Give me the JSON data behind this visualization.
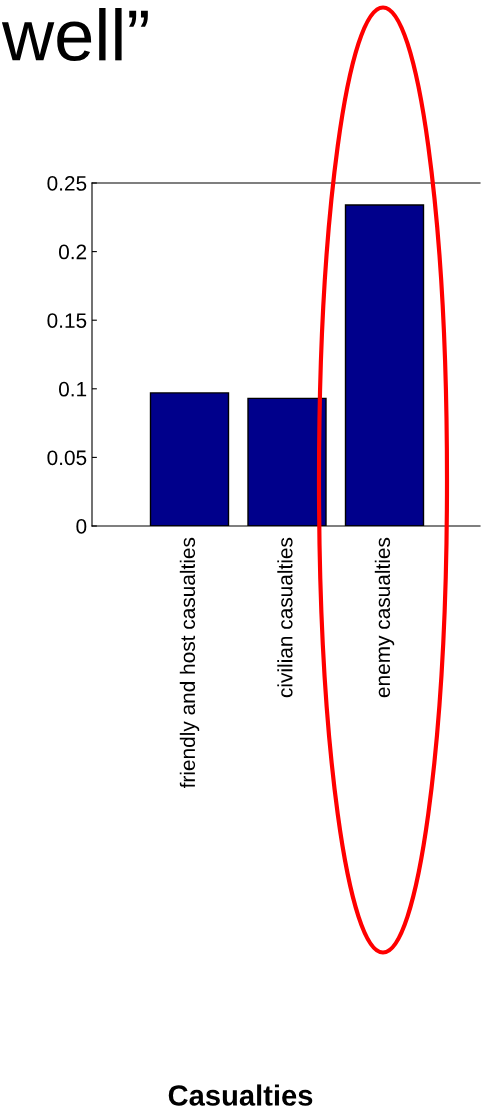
{
  "chart_data": {
    "type": "bar",
    "title": "well”",
    "annotations": [
      "Casualties"
    ],
    "categories": [
      "friendly and host casualties",
      "civilian casualties",
      "enemy casualties"
    ],
    "values": [
      0.097,
      0.093,
      0.234
    ],
    "color": "#00008b",
    "ylim": [
      0,
      0.25
    ],
    "yticks": [
      0,
      0.05,
      0.1,
      0.15,
      0.2,
      0.25
    ],
    "grid": false
  }
}
